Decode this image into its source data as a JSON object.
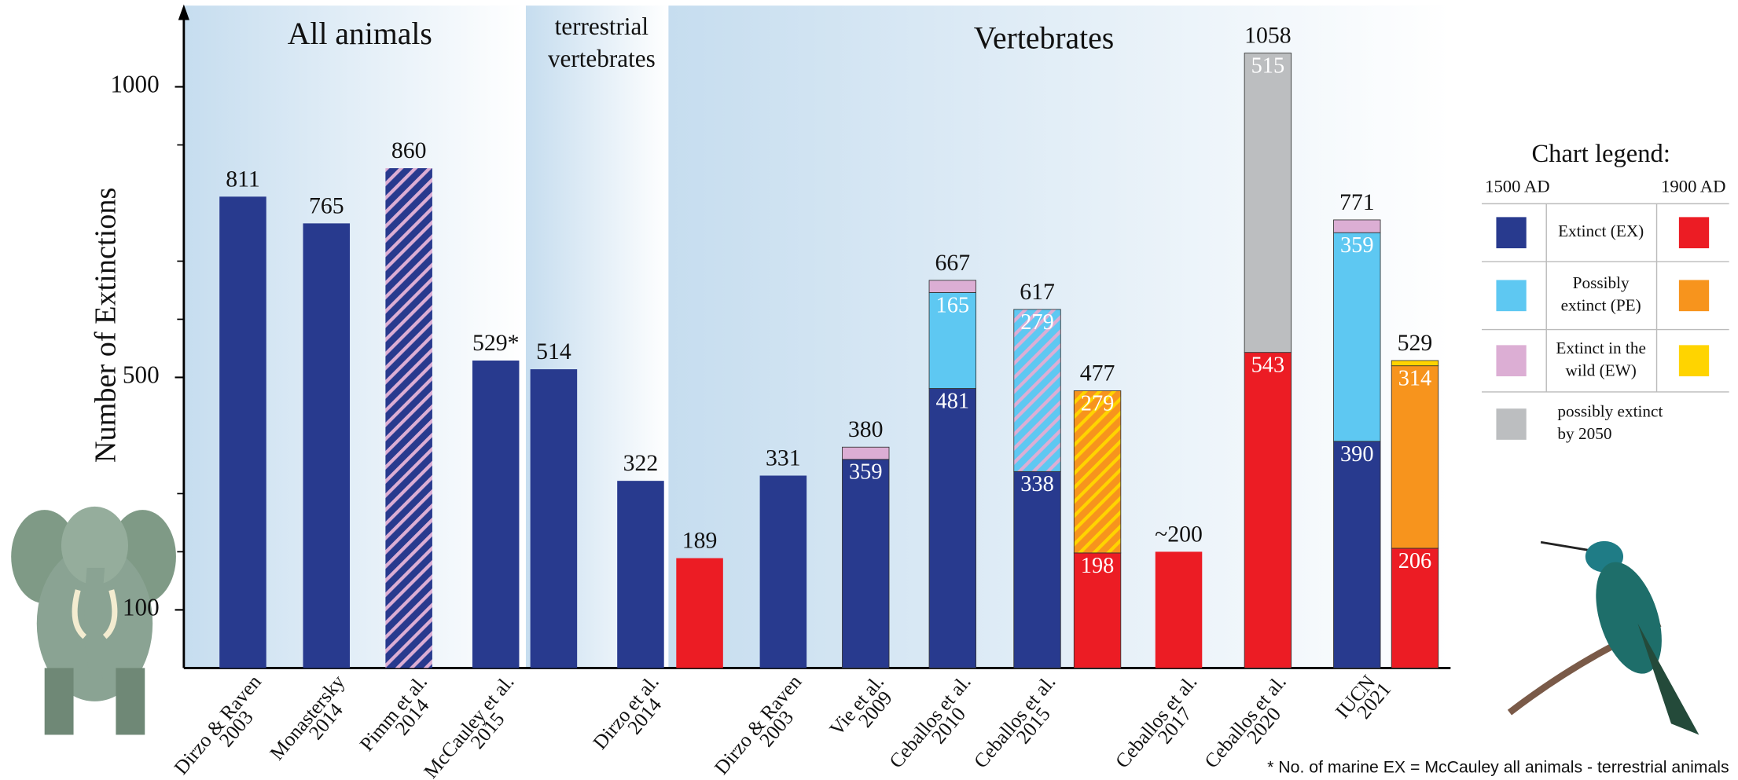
{
  "chart_data": {
    "type": "bar",
    "stacked": true,
    "y_label": "Number of Extinctions",
    "ylim": [
      0,
      1134
    ],
    "yticks": [
      100,
      500,
      1000
    ],
    "minor_yticks": [
      200,
      300,
      600,
      700,
      900
    ],
    "sections": [
      [
        "All animals"
      ],
      [
        "terrestrial",
        "vertebrates"
      ],
      [
        "Vertebrates"
      ]
    ],
    "groups": [
      {
        "label": [
          "Dirzo & Raven",
          "2003"
        ],
        "bars": [
          {
            "segments": [
              {
                "value": 811,
                "color": "#283a8e"
              }
            ]
          }
        ]
      },
      {
        "label": [
          "Monastersky",
          "2014"
        ],
        "bars": [
          {
            "segments": [
              {
                "value": 765,
                "color": "#283a8e"
              }
            ]
          }
        ]
      },
      {
        "label": [
          "Pimm et al.",
          "2014"
        ],
        "bars": [
          {
            "segments": [
              {
                "value": 860,
                "color": "#283a8e",
                "hatch": "#dcaed4"
              }
            ]
          }
        ]
      },
      {
        "label": [
          "McCauley et al.",
          "2015"
        ],
        "bars": [
          {
            "segments": [
              {
                "value": 529,
                "value_label": "529*",
                "color": "#283a8e"
              }
            ]
          },
          {
            "segments": [
              {
                "value": 514,
                "color": "#283a8e"
              }
            ]
          }
        ]
      },
      {
        "label": [
          "Dirzo et al.",
          "2014"
        ],
        "bars": [
          {
            "segments": [
              {
                "value": 322,
                "color": "#283a8e"
              }
            ]
          },
          {
            "segments": [
              {
                "value": 189,
                "color": "#ec1c24"
              }
            ]
          }
        ]
      },
      {
        "label": [
          "Dirzo & Raven",
          "2003"
        ],
        "bars": [
          {
            "segments": [
              {
                "value": 331,
                "color": "#283a8e"
              }
            ]
          }
        ]
      },
      {
        "label": [
          "Vie et al.",
          "2009"
        ],
        "bars": [
          {
            "total": 380,
            "segments": [
              {
                "value": 359,
                "color": "#283a8e"
              },
              {
                "value": 21,
                "color": "#dcaed4",
                "labeled": false
              }
            ]
          }
        ]
      },
      {
        "label": [
          "Ceballos et al.",
          "2010"
        ],
        "bars": [
          {
            "total": 667,
            "segments": [
              {
                "value": 481,
                "color": "#283a8e"
              },
              {
                "value": 165,
                "color": "#5ec8f2"
              },
              {
                "value": 21,
                "color": "#dcaed4",
                "labeled": false
              }
            ]
          }
        ]
      },
      {
        "label": [
          "Ceballos et al.",
          "2015"
        ],
        "bars": [
          {
            "total": 617,
            "segments": [
              {
                "value": 338,
                "color": "#283a8e"
              },
              {
                "value": 279,
                "color": "#5ec8f2",
                "hatch": "#dcaed4"
              }
            ]
          },
          {
            "total": 477,
            "segments": [
              {
                "value": 198,
                "color": "#ec1c24"
              },
              {
                "value": 279,
                "color": "#f7941d",
                "hatch": "#ffd400"
              }
            ]
          }
        ]
      },
      {
        "label": [
          "Ceballos et al.",
          "2017"
        ],
        "bars": [
          {
            "segments": [
              {
                "value": 200,
                "value_label": "~200",
                "color": "#ec1c24"
              }
            ]
          }
        ]
      },
      {
        "label": [
          "Ceballos et al.",
          "2020"
        ],
        "bars": [
          {
            "total": 1058,
            "segments": [
              {
                "value": 543,
                "color": "#ec1c24"
              },
              {
                "value": 515,
                "color": "#bcbec0"
              }
            ]
          }
        ]
      },
      {
        "label": [
          "IUCN",
          "2021"
        ],
        "bars": [
          {
            "total": 771,
            "segments": [
              {
                "value": 390,
                "color": "#283a8e"
              },
              {
                "value": 359,
                "color": "#5ec8f2"
              },
              {
                "value": 22,
                "color": "#dcaed4",
                "labeled": false
              }
            ]
          },
          {
            "total": 529,
            "segments": [
              {
                "value": 206,
                "color": "#ec1c24"
              },
              {
                "value": 314,
                "color": "#f7941d"
              },
              {
                "value": 9,
                "color": "#ffd400",
                "labeled": false
              }
            ]
          }
        ]
      }
    ],
    "legend": {
      "title": "Chart legend:",
      "columns": [
        "1500 AD",
        "1900 AD"
      ],
      "rows": [
        {
          "label": [
            "Extinct (EX)"
          ],
          "colors": [
            "#283a8e",
            "#ec1c24"
          ]
        },
        {
          "label": [
            "Possibly",
            "extinct (PE)"
          ],
          "colors": [
            "#5ec8f2",
            "#f7941d"
          ]
        },
        {
          "label": [
            "Extinct in the",
            "wild (EW)"
          ],
          "colors": [
            "#dcaed4",
            "#ffd400"
          ]
        },
        {
          "label": [
            "possibly extinct",
            "by 2050"
          ],
          "colors": [
            "#bcbec0"
          ]
        }
      ]
    },
    "footnote": "* No. of marine EX = McCauley all animals - terrestrial animals"
  }
}
